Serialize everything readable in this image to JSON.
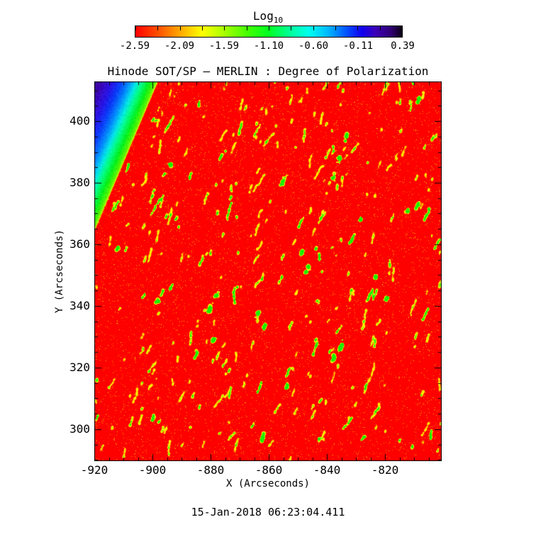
{
  "page": {
    "background": "#ffffff",
    "text_color": "#000000"
  },
  "colorbar": {
    "title_base": "Log",
    "title_sub": "10",
    "tick_labels": [
      "-2.59",
      "-2.09",
      "-1.59",
      "-1.10",
      "-0.60",
      "-0.11",
      "0.39"
    ],
    "top_tick_count": 13,
    "gradient_stops": [
      [
        0.0,
        "#ff0000"
      ],
      [
        0.09,
        "#ff5500"
      ],
      [
        0.17,
        "#ffaa00"
      ],
      [
        0.25,
        "#ffff00"
      ],
      [
        0.33,
        "#aaff00"
      ],
      [
        0.42,
        "#44ff00"
      ],
      [
        0.5,
        "#00ff22"
      ],
      [
        0.58,
        "#00ff99"
      ],
      [
        0.65,
        "#00ffee"
      ],
      [
        0.72,
        "#00bbff"
      ],
      [
        0.79,
        "#0055ff"
      ],
      [
        0.85,
        "#1100ee"
      ],
      [
        0.9,
        "#3c00b8"
      ],
      [
        0.96,
        "#2e0070"
      ],
      [
        1.0,
        "#0c0015"
      ]
    ]
  },
  "chart_data": {
    "type": "heatmap",
    "title": "Hinode SOT/SP — MERLIN : Degree of Polarization",
    "xlabel": "X (Arcseconds)",
    "ylabel": "Y (Arcseconds)",
    "xlim": [
      -920,
      -800.5
    ],
    "ylim": [
      289.6,
      412.9
    ],
    "xticks": [
      -920,
      -900,
      -880,
      -860,
      -840,
      -820
    ],
    "yticks": [
      300,
      320,
      340,
      360,
      380,
      400
    ],
    "minor_tick_step": 5,
    "colorbar_title": "Log10",
    "colorbar_range": [
      -2.59,
      0.39
    ],
    "legend_position": "top-colorbar",
    "grid": false,
    "value_description": "log10 degree of polarization: saturated red background ~ -2.59 (disk), yellow/green magnetic speckle streaks at higher polarization, blue-to-purple off-limb gradient in upper-left corner",
    "limb_boundary": {
      "p1": [
        -898.3,
        412.9
      ],
      "p2": [
        -920.0,
        364.6
      ]
    },
    "bright_features": [
      {
        "x": -880.5,
        "y": 338.8,
        "s": 3.0
      },
      {
        "x": -878.0,
        "y": 343.9,
        "s": 1.5
      },
      {
        "x": -863.9,
        "y": 337.4,
        "s": 2.0
      },
      {
        "x": -861.7,
        "y": 333.1,
        "s": 2.0
      },
      {
        "x": -835.4,
        "y": 326.6,
        "s": 4.0
      },
      {
        "x": -837.8,
        "y": 323.2,
        "s": 2.0
      },
      {
        "x": -833.7,
        "y": 394.5,
        "s": 2.0
      },
      {
        "x": -835.9,
        "y": 387.6,
        "s": 2.0
      },
      {
        "x": -837.8,
        "y": 381.8,
        "s": 1.5
      },
      {
        "x": -848.8,
        "y": 357.7,
        "s": 2.0
      },
      {
        "x": -846.8,
        "y": 351.9,
        "s": 2.0
      },
      {
        "x": -855.4,
        "y": 380.0,
        "s": 2.0
      },
      {
        "x": -812.2,
        "y": 371.0,
        "s": 1.5
      },
      {
        "x": -809.0,
        "y": 372.6,
        "s": 1.5
      },
      {
        "x": -828.5,
        "y": 368.0,
        "s": 1.5
      },
      {
        "x": -862.2,
        "y": 297.2,
        "s": 2.0
      },
      {
        "x": -900.0,
        "y": 303.6,
        "s": 1.5
      },
      {
        "x": -853.7,
        "y": 314.0,
        "s": 1.5
      },
      {
        "x": -898.3,
        "y": 341.6,
        "s": 1.0
      },
      {
        "x": -808.5,
        "y": 407.2,
        "s": 2.0
      },
      {
        "x": -893.9,
        "y": 386.0,
        "s": 1.0
      },
      {
        "x": -912.2,
        "y": 358.8,
        "s": 1.0
      },
      {
        "x": -879.3,
        "y": 328.9,
        "s": 1.0
      },
      {
        "x": -819.5,
        "y": 342.7,
        "s": 1.0
      },
      {
        "x": -823.2,
        "y": 349.6,
        "s": 1.0
      }
    ],
    "timestamp": "15-Jan-2018 06:23:04.411"
  },
  "render": {
    "seed": 1337,
    "streak_count": 360,
    "streak_angle_rad": -1.22,
    "noise_dot_prob": 0.045,
    "limb_band_stops": [
      [
        0,
        [
          210,
          255,
          0
        ]
      ],
      [
        3,
        [
          90,
          245,
          0
        ]
      ],
      [
        12,
        [
          0,
          240,
          30
        ]
      ],
      [
        22,
        [
          0,
          255,
          140
        ]
      ],
      [
        30,
        [
          0,
          230,
          230
        ]
      ],
      [
        40,
        [
          0,
          140,
          255
        ]
      ],
      [
        52,
        [
          10,
          60,
          250
        ]
      ],
      [
        64,
        [
          40,
          20,
          230
        ]
      ],
      [
        78,
        [
          60,
          5,
          180
        ]
      ],
      [
        95,
        [
          55,
          0,
          130
        ]
      ],
      [
        120,
        [
          35,
          0,
          80
        ]
      ],
      [
        160,
        [
          20,
          0,
          45
        ]
      ]
    ]
  }
}
